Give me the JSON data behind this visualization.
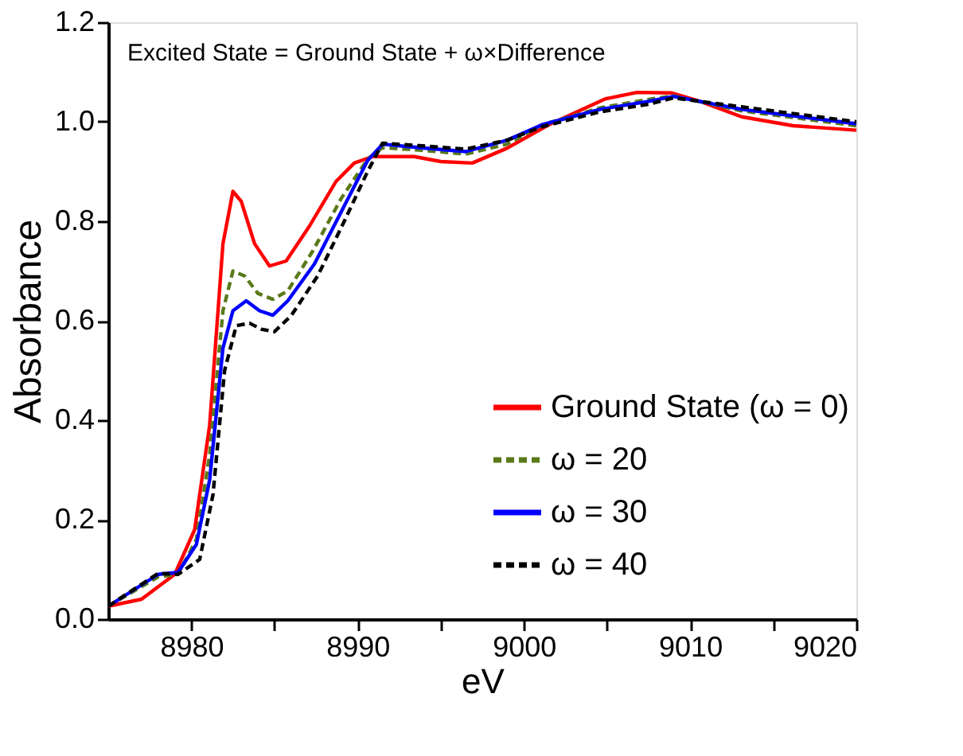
{
  "chart_data": {
    "type": "line",
    "xlabel": "eV",
    "ylabel": "Absorbance",
    "annotations": [
      "Excited State = Ground State + ω×Difference"
    ],
    "xlim": [
      8975,
      9020
    ],
    "ylim": [
      0,
      1.2
    ],
    "xticks": [
      8980,
      {
        "value": 8985,
        "label": null
      },
      8990,
      {
        "value": 8995,
        "label": null
      },
      9000,
      {
        "value": 9005,
        "label": null
      },
      9010,
      {
        "value": 9015,
        "label": null
      },
      9020
    ],
    "yticks": [
      {
        "value": 0,
        "label": "0.0"
      },
      0.2,
      0.4,
      0.6,
      0.8,
      {
        "value": 1.0,
        "label": "1.0"
      },
      1.2
    ],
    "grid": false,
    "legend": "bottom right",
    "marker": "none",
    "series": [
      {
        "name": "Ground State (ω = 0)",
        "color": "#ff0000",
        "line_style": "solid",
        "x": [
          8975,
          8977,
          8979,
          8980.2,
          8981.1,
          8981.9,
          8982.5,
          8983,
          8983.8,
          8984.7,
          8985.7,
          8987.1,
          8988.7,
          8989.8,
          8990.9,
          8993.4,
          8995,
          8996.9,
          8999,
          9001.5,
          9004.9,
          9006.8,
          9008.9,
          9010.6,
          9013.1,
          9016.2,
          9020
        ],
        "values": [
          0.026,
          0.04,
          0.09,
          0.18,
          0.39,
          0.755,
          0.86,
          0.84,
          0.755,
          0.71,
          0.72,
          0.79,
          0.88,
          0.917,
          0.93,
          0.93,
          0.92,
          0.917,
          0.947,
          0.994,
          1.046,
          1.059,
          1.058,
          1.041,
          1.01,
          0.992,
          0.983
        ]
      },
      {
        "name": "ω = 20",
        "color": "#5a7a1a",
        "line_style": "dashed",
        "x": [
          8975,
          8978,
          8979.2,
          8980.3,
          8981.1,
          8981.9,
          8982.5,
          8983.2,
          8984,
          8984.9,
          8985.8,
          8987.3,
          8989,
          8990.6,
          8991.5,
          8993.7,
          8996.5,
          8999,
          9001.1,
          9004.6,
          9007.5,
          9009,
          9013.1,
          9020
        ],
        "values": [
          0.026,
          0.085,
          0.09,
          0.16,
          0.33,
          0.62,
          0.7,
          0.69,
          0.655,
          0.643,
          0.66,
          0.74,
          0.845,
          0.925,
          0.948,
          0.943,
          0.935,
          0.955,
          0.994,
          1.028,
          1.045,
          1.052,
          1.022,
          0.992
        ]
      },
      {
        "name": "ω = 30",
        "color": "#0000ff",
        "line_style": "solid",
        "x": [
          8975,
          8978,
          8979.2,
          8980.3,
          8981.1,
          8981.9,
          8982.5,
          8983.3,
          8984.1,
          8984.9,
          8985.8,
          8987.4,
          8989,
          8990.6,
          8991.5,
          8993.7,
          8996.5,
          8999,
          9001.1,
          9004.6,
          9007.5,
          9009,
          9013.1,
          9020
        ],
        "values": [
          0.026,
          0.09,
          0.094,
          0.15,
          0.28,
          0.545,
          0.62,
          0.64,
          0.62,
          0.611,
          0.64,
          0.714,
          0.818,
          0.922,
          0.955,
          0.948,
          0.94,
          0.963,
          0.994,
          1.025,
          1.041,
          1.051,
          1.025,
          0.996
        ]
      },
      {
        "name": "ω = 40",
        "color": "#000000",
        "line_style": "dashed",
        "x": [
          8975,
          8978,
          8979.2,
          8980.5,
          8981.3,
          8982,
          8982.7,
          8983.5,
          8984.2,
          8985,
          8986,
          8987.6,
          8989.2,
          8990.6,
          8991.5,
          8993.7,
          8996.5,
          8999,
          9001.1,
          9004.6,
          9007.5,
          9009,
          9013.1,
          9020
        ],
        "values": [
          0.026,
          0.092,
          0.09,
          0.12,
          0.25,
          0.5,
          0.59,
          0.595,
          0.583,
          0.578,
          0.61,
          0.69,
          0.8,
          0.9,
          0.957,
          0.952,
          0.945,
          0.963,
          0.99,
          1.02,
          1.035,
          1.048,
          1.03,
          1.0
        ]
      }
    ]
  }
}
